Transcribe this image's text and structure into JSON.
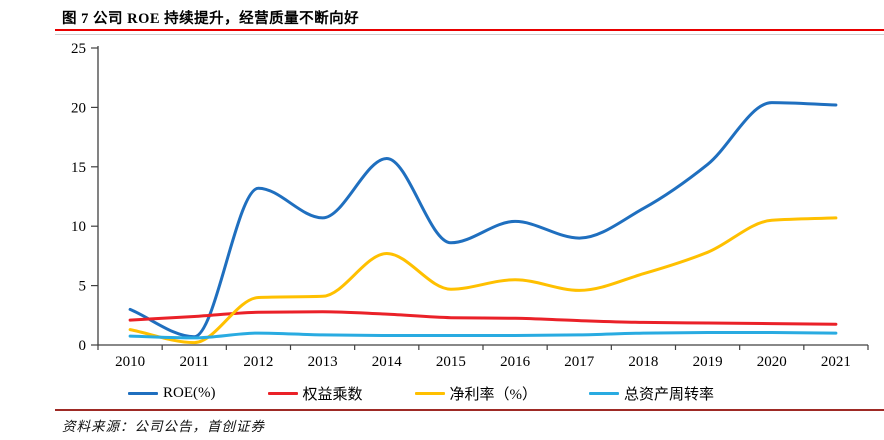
{
  "header": {
    "title": "图 7 公司 ROE 持续提升，经营质量不断向好"
  },
  "chart_data": {
    "type": "line",
    "title": "图 7 公司 ROE 持续提升，经营质量不断向好",
    "x": [
      2010,
      2011,
      2012,
      2013,
      2014,
      2015,
      2016,
      2017,
      2018,
      2019,
      2020,
      2021
    ],
    "series": [
      {
        "name": "ROE(%)",
        "color": "#1F6FBF",
        "values": [
          3.0,
          0.7,
          13.2,
          10.7,
          15.7,
          8.6,
          10.4,
          9.0,
          11.5,
          15.2,
          20.4,
          20.2
        ]
      },
      {
        "name": "权益乘数",
        "color": "#EA2128",
        "values": [
          2.1,
          2.4,
          2.75,
          2.8,
          2.6,
          2.3,
          2.25,
          2.05,
          1.9,
          1.85,
          1.8,
          1.75
        ]
      },
      {
        "name": "净利率（%）",
        "color": "#FFC000",
        "values": [
          1.3,
          0.2,
          4.0,
          4.1,
          7.7,
          4.7,
          5.5,
          4.6,
          6.0,
          7.8,
          10.5,
          10.7
        ]
      },
      {
        "name": "总资产周转率",
        "color": "#29ABE1",
        "values": [
          0.75,
          0.6,
          1.0,
          0.85,
          0.8,
          0.8,
          0.8,
          0.85,
          1.0,
          1.05,
          1.05,
          1.0
        ]
      }
    ],
    "ylim": [
      0,
      25
    ],
    "yticks": [
      0,
      5,
      10,
      15,
      20,
      25
    ],
    "xlabel": "",
    "ylabel": "",
    "grid": false,
    "legend_position": "bottom",
    "smoothed_lines": true
  },
  "source": {
    "text": "资料来源：公司公告，首创证券"
  },
  "colors": {
    "title_rule": "#E90000",
    "title_rule_secondary": "#CFCFCF",
    "source_rule": "#9E2A25",
    "axis": "#404040"
  }
}
